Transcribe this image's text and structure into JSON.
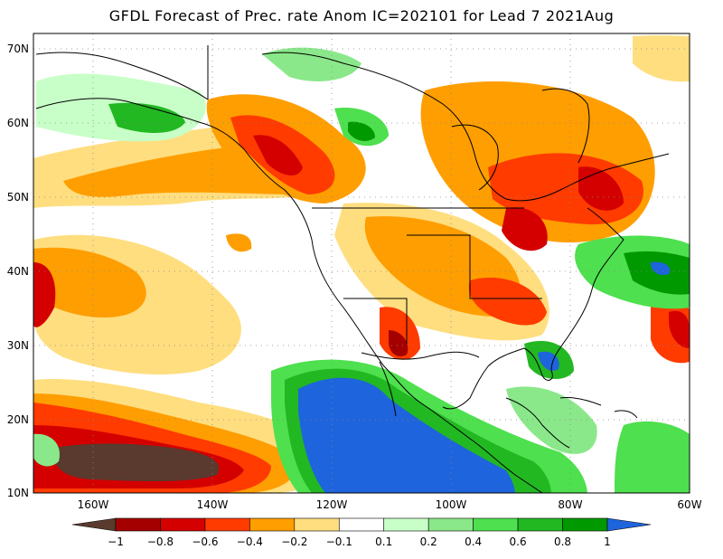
{
  "title": "GFDL Forecast of Prec. rate Anom IC=202101 for Lead 7 2021Aug",
  "map": {
    "lat_labels": [
      "70N",
      "60N",
      "50N",
      "40N",
      "30N",
      "20N",
      "10N"
    ],
    "lon_labels": [
      "160W",
      "140W",
      "120W",
      "100W",
      "80W",
      "60W"
    ],
    "region": "North America",
    "grid": "dotted"
  },
  "colorbar": {
    "labels": [
      "−1",
      "−0.8",
      "−0.6",
      "−0.4",
      "−0.2",
      "−0.1",
      "0.1",
      "0.2",
      "0.4",
      "0.6",
      "0.8",
      "1"
    ],
    "colors": [
      "#5a3a2e",
      "#a50000",
      "#d40000",
      "#ff3b00",
      "#ff9e00",
      "#ffde80",
      "#ffffff",
      "#c8ffc8",
      "#8ae88a",
      "#4ee04e",
      "#22b822",
      "#009900",
      "#1e64dc"
    ]
  }
}
